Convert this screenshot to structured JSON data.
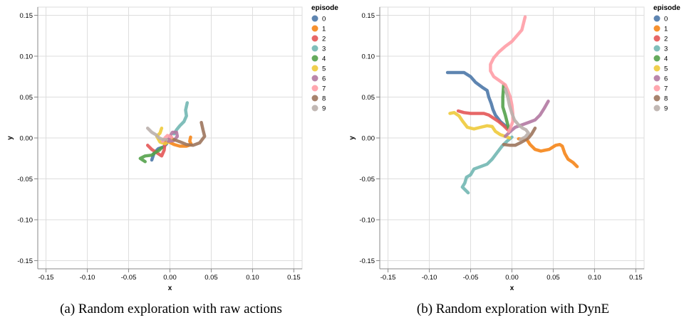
{
  "chart_data": [
    {
      "type": "line",
      "xlabel": "x",
      "ylabel": "y",
      "xlim": [
        -0.16,
        0.16
      ],
      "ylim": [
        -0.16,
        0.16
      ],
      "ticks": [
        "-0.15",
        "-0.10",
        "-0.05",
        "0.00",
        "0.05",
        "0.10",
        "0.15"
      ],
      "tick_values": [
        -0.15,
        -0.1,
        -0.05,
        0.0,
        0.05,
        0.1,
        0.15
      ],
      "grid": true,
      "legend": {
        "title": "episode",
        "position": "right"
      },
      "caption": "(a) Random exploration with raw actions",
      "series": [
        {
          "name": "0",
          "color": "#4c78a8",
          "points": [
            [
              -0.022,
              -0.027
            ],
            [
              -0.019,
              -0.018
            ],
            [
              -0.014,
              -0.013
            ],
            [
              -0.008,
              -0.011
            ],
            [
              -0.004,
              -0.007
            ]
          ]
        },
        {
          "name": "1",
          "color": "#f58518",
          "points": [
            [
              -0.005,
              -0.003
            ],
            [
              0.005,
              -0.008
            ],
            [
              0.012,
              -0.01
            ],
            [
              0.02,
              -0.01
            ],
            [
              0.026,
              -0.008
            ],
            [
              0.024,
              -0.004
            ],
            [
              0.025,
              0.001
            ]
          ]
        },
        {
          "name": "2",
          "color": "#e45756",
          "points": [
            [
              -0.027,
              -0.009
            ],
            [
              -0.022,
              -0.014
            ],
            [
              -0.016,
              -0.018
            ],
            [
              -0.01,
              -0.022
            ],
            [
              -0.007,
              -0.015
            ],
            [
              -0.006,
              -0.007
            ],
            [
              -0.003,
              -0.002
            ],
            [
              0.003,
              -0.001
            ]
          ]
        },
        {
          "name": "3",
          "color": "#72b7b2",
          "points": [
            [
              0.005,
              0.005
            ],
            [
              0.008,
              0.01
            ],
            [
              0.012,
              0.015
            ],
            [
              0.017,
              0.02
            ],
            [
              0.02,
              0.027
            ],
            [
              0.019,
              0.034
            ],
            [
              0.021,
              0.043
            ]
          ]
        },
        {
          "name": "4",
          "color": "#54a24b",
          "points": [
            [
              -0.03,
              -0.029
            ],
            [
              -0.036,
              -0.025
            ],
            [
              -0.03,
              -0.022
            ],
            [
              -0.022,
              -0.021
            ],
            [
              -0.018,
              -0.018
            ],
            [
              -0.013,
              -0.015
            ],
            [
              -0.01,
              -0.012
            ]
          ]
        },
        {
          "name": "5",
          "color": "#eeca3b",
          "points": [
            [
              -0.01,
              0.012
            ],
            [
              -0.012,
              0.006
            ],
            [
              -0.016,
              0.002
            ],
            [
              -0.012,
              -0.005
            ],
            [
              -0.006,
              -0.007
            ],
            [
              0.0,
              -0.004
            ],
            [
              0.004,
              -0.002
            ]
          ]
        },
        {
          "name": "6",
          "color": "#b279a2",
          "points": [
            [
              -0.002,
              -0.004
            ],
            [
              0.0,
              0.002
            ],
            [
              0.003,
              0.007
            ],
            [
              0.008,
              0.007
            ],
            [
              0.009,
              0.002
            ],
            [
              0.005,
              -0.003
            ],
            [
              0.0,
              -0.004
            ]
          ]
        },
        {
          "name": "7",
          "color": "#ff9da6",
          "points": [
            [
              -0.009,
              -0.004
            ],
            [
              -0.006,
              0.0
            ],
            [
              -0.003,
              0.003
            ],
            [
              0.002,
              0.001
            ]
          ]
        },
        {
          "name": "8",
          "color": "#9d755d",
          "points": [
            [
              0.005,
              -0.002
            ],
            [
              0.013,
              -0.005
            ],
            [
              0.02,
              -0.008
            ],
            [
              0.028,
              -0.009
            ],
            [
              0.036,
              -0.006
            ],
            [
              0.042,
              0.002
            ],
            [
              0.04,
              0.01
            ],
            [
              0.038,
              0.019
            ]
          ]
        },
        {
          "name": "9",
          "color": "#bab0ac",
          "points": [
            [
              -0.027,
              0.012
            ],
            [
              -0.022,
              0.007
            ],
            [
              -0.017,
              0.004
            ],
            [
              -0.013,
              0.0
            ],
            [
              -0.008,
              -0.002
            ],
            [
              -0.004,
              -0.002
            ]
          ]
        }
      ]
    },
    {
      "type": "line",
      "xlabel": "x",
      "ylabel": "y",
      "xlim": [
        -0.16,
        0.16
      ],
      "ylim": [
        -0.16,
        0.16
      ],
      "ticks": [
        "-0.15",
        "-0.10",
        "-0.05",
        "0.00",
        "0.05",
        "0.10",
        "0.15"
      ],
      "tick_values": [
        -0.15,
        -0.1,
        -0.05,
        0.0,
        0.05,
        0.1,
        0.15
      ],
      "grid": true,
      "legend": {
        "title": "episode",
        "position": "right"
      },
      "caption": "(b) Random exploration with DynE",
      "series": [
        {
          "name": "0",
          "color": "#4c78a8",
          "points": [
            [
              -0.078,
              0.08
            ],
            [
              -0.065,
              0.08
            ],
            [
              -0.058,
              0.08
            ],
            [
              -0.05,
              0.075
            ],
            [
              -0.044,
              0.068
            ],
            [
              -0.036,
              0.062
            ],
            [
              -0.03,
              0.058
            ],
            [
              -0.028,
              0.05
            ],
            [
              -0.025,
              0.042
            ],
            [
              -0.023,
              0.035
            ],
            [
              -0.02,
              0.028
            ],
            [
              -0.014,
              0.02
            ],
            [
              -0.008,
              0.015
            ],
            [
              -0.004,
              0.012
            ]
          ]
        },
        {
          "name": "1",
          "color": "#f58518",
          "points": [
            [
              0.008,
              -0.001
            ],
            [
              0.018,
              -0.002
            ],
            [
              0.022,
              -0.008
            ],
            [
              0.028,
              -0.014
            ],
            [
              0.035,
              -0.016
            ],
            [
              0.045,
              -0.014
            ],
            [
              0.053,
              -0.009
            ],
            [
              0.058,
              -0.008
            ],
            [
              0.061,
              -0.01
            ],
            [
              0.064,
              -0.019
            ],
            [
              0.068,
              -0.026
            ],
            [
              0.074,
              -0.03
            ],
            [
              0.079,
              -0.035
            ]
          ]
        },
        {
          "name": "2",
          "color": "#e45756",
          "points": [
            [
              -0.065,
              0.033
            ],
            [
              -0.058,
              0.031
            ],
            [
              -0.05,
              0.03
            ],
            [
              -0.042,
              0.03
            ],
            [
              -0.034,
              0.03
            ],
            [
              -0.028,
              0.028
            ],
            [
              -0.022,
              0.024
            ],
            [
              -0.016,
              0.02
            ],
            [
              -0.01,
              0.015
            ],
            [
              -0.005,
              0.01
            ]
          ]
        },
        {
          "name": "3",
          "color": "#72b7b2",
          "points": [
            [
              -0.053,
              -0.067
            ],
            [
              -0.06,
              -0.06
            ],
            [
              -0.057,
              -0.055
            ],
            [
              -0.055,
              -0.048
            ],
            [
              -0.05,
              -0.045
            ],
            [
              -0.046,
              -0.038
            ],
            [
              -0.038,
              -0.035
            ],
            [
              -0.03,
              -0.032
            ],
            [
              -0.024,
              -0.026
            ],
            [
              -0.018,
              -0.018
            ],
            [
              -0.012,
              -0.01
            ],
            [
              -0.006,
              -0.004
            ],
            [
              0.0,
              0.001
            ]
          ]
        },
        {
          "name": "4",
          "color": "#54a24b",
          "points": [
            [
              -0.01,
              0.065
            ],
            [
              -0.011,
              0.05
            ],
            [
              -0.011,
              0.038
            ],
            [
              -0.008,
              0.028
            ],
            [
              -0.006,
              0.02
            ],
            [
              -0.004,
              0.012
            ]
          ]
        },
        {
          "name": "5",
          "color": "#eeca3b",
          "points": [
            [
              -0.075,
              0.03
            ],
            [
              -0.07,
              0.031
            ],
            [
              -0.064,
              0.027
            ],
            [
              -0.06,
              0.021
            ],
            [
              -0.054,
              0.013
            ],
            [
              -0.046,
              0.011
            ],
            [
              -0.038,
              0.013
            ],
            [
              -0.03,
              0.015
            ],
            [
              -0.024,
              0.014
            ],
            [
              -0.02,
              0.008
            ],
            [
              -0.014,
              0.004
            ],
            [
              -0.008,
              0.002
            ],
            [
              -0.003,
              0.0
            ]
          ]
        },
        {
          "name": "6",
          "color": "#b279a2",
          "points": [
            [
              -0.008,
              0.002
            ],
            [
              -0.002,
              0.008
            ],
            [
              0.004,
              0.013
            ],
            [
              0.012,
              0.016
            ],
            [
              0.02,
              0.019
            ],
            [
              0.028,
              0.022
            ],
            [
              0.034,
              0.028
            ],
            [
              0.039,
              0.036
            ],
            [
              0.044,
              0.045
            ]
          ]
        },
        {
          "name": "7",
          "color": "#ff9da6",
          "points": [
            [
              0.016,
              0.148
            ],
            [
              0.014,
              0.14
            ],
            [
              0.012,
              0.132
            ],
            [
              0.006,
              0.125
            ],
            [
              0.0,
              0.118
            ],
            [
              -0.008,
              0.112
            ],
            [
              -0.016,
              0.105
            ],
            [
              -0.022,
              0.098
            ],
            [
              -0.026,
              0.09
            ],
            [
              -0.026,
              0.082
            ],
            [
              -0.022,
              0.075
            ],
            [
              -0.015,
              0.07
            ],
            [
              -0.008,
              0.065
            ],
            [
              -0.005,
              0.058
            ],
            [
              -0.002,
              0.05
            ],
            [
              0.0,
              0.04
            ],
            [
              0.001,
              0.03
            ],
            [
              0.001,
              0.02
            ],
            [
              -0.002,
              0.012
            ],
            [
              -0.004,
              0.008
            ]
          ]
        },
        {
          "name": "8",
          "color": "#9d755d",
          "points": [
            [
              -0.01,
              -0.008
            ],
            [
              -0.002,
              -0.009
            ],
            [
              0.004,
              -0.009
            ],
            [
              0.01,
              -0.006
            ],
            [
              0.015,
              -0.003
            ],
            [
              0.02,
              0.0
            ],
            [
              0.024,
              0.005
            ],
            [
              0.028,
              0.012
            ]
          ]
        },
        {
          "name": "9",
          "color": "#bab0ac",
          "points": [
            [
              -0.008,
              0.06
            ],
            [
              -0.005,
              0.05
            ],
            [
              -0.003,
              0.04
            ],
            [
              0.0,
              0.03
            ],
            [
              0.003,
              0.022
            ],
            [
              0.008,
              0.016
            ],
            [
              0.013,
              0.012
            ],
            [
              0.017,
              0.01
            ],
            [
              0.02,
              0.006
            ],
            [
              0.016,
              0.001
            ],
            [
              0.01,
              -0.002
            ]
          ]
        }
      ]
    }
  ]
}
